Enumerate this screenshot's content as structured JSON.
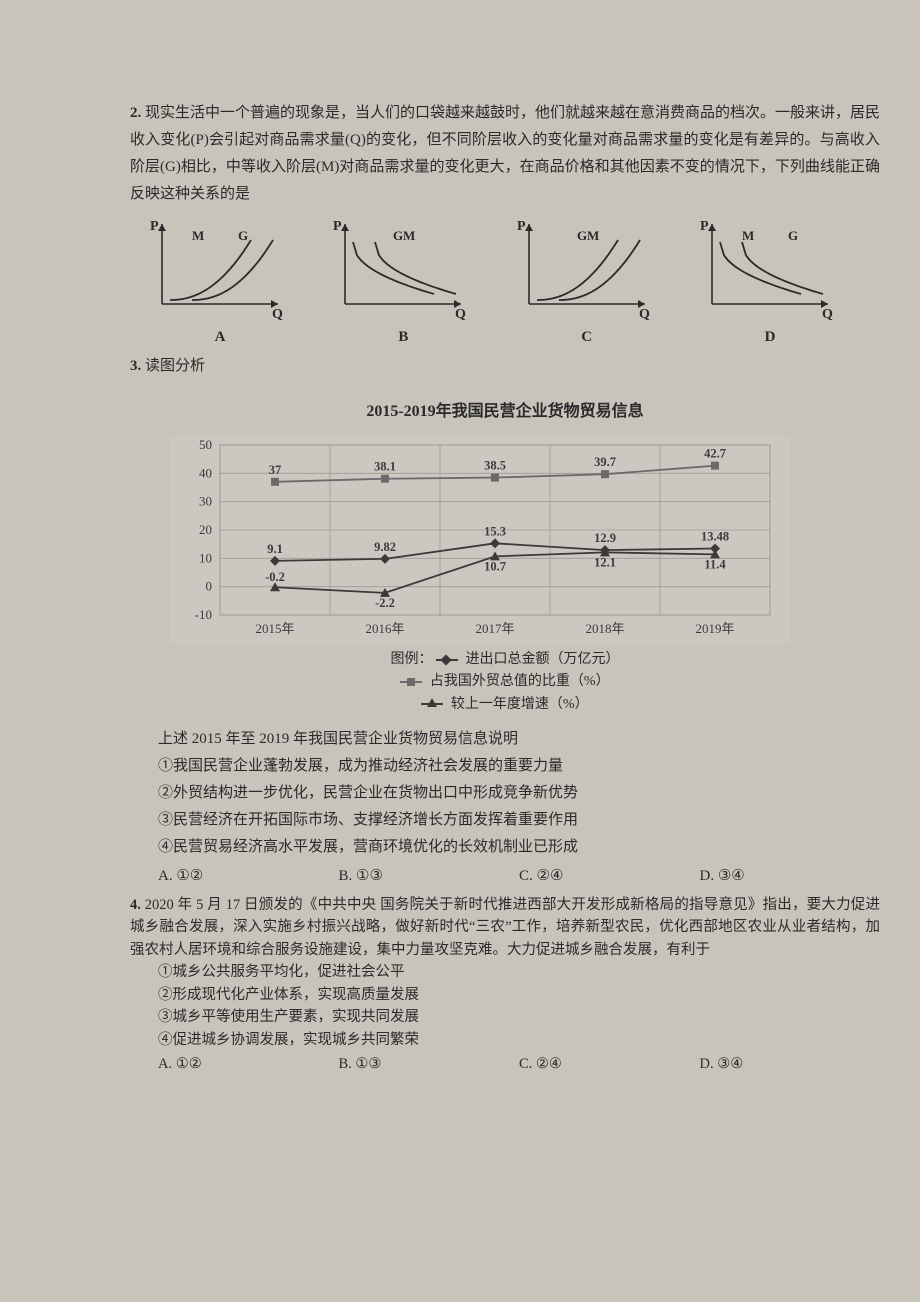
{
  "q2": {
    "number": "2.",
    "text": "现实生活中一个普遍的现象是，当人们的口袋越来越鼓时，他们就越来越在意消费商品的档次。一般来讲，居民收入变化(P)会引起对商品需求量(Q)的变化，但不同阶层收入的变化量对商品需求量的变化是有差异的。与高收入阶层(G)相比，中等收入阶层(M)对商品需求量的变化更大，在商品价格和其他因素不变的情况下，下列曲线能正确反映这种关系的是",
    "graphs": {
      "axis_color": "#2a2a2a",
      "curve_color": "#2a2a2a",
      "bg": "transparent",
      "labelP": "P",
      "labelQ": "Q",
      "labelM": "M",
      "labelG": "G",
      "items": [
        {
          "label": "A",
          "type": "up",
          "m_left": true
        },
        {
          "label": "B",
          "type": "down",
          "m_left": false
        },
        {
          "label": "C",
          "type": "up",
          "m_left": false
        },
        {
          "label": "D",
          "type": "down",
          "m_left": true
        }
      ]
    }
  },
  "q3": {
    "number": "3.",
    "lead": "读图分析",
    "chart": {
      "title": "2015-2019年我国民营企业货物贸易信息",
      "categories": [
        "2015年",
        "2016年",
        "2017年",
        "2018年",
        "2019年"
      ],
      "y_ticks": [
        -10,
        0,
        10,
        20,
        30,
        40,
        50
      ],
      "ylim": [
        -10,
        50
      ],
      "background_color": "#d6d2ca",
      "grid_color": "#9e9a92",
      "axis_color": "#3a3a3a",
      "label_fontsize": 13,
      "series": [
        {
          "key": "amount",
          "name": "进出口总金额（万亿元）",
          "marker": "diamond",
          "line_color": "#3a3a3a",
          "values": [
            9.1,
            9.82,
            15.3,
            12.9,
            13.48
          ],
          "label_dy": [
            -8,
            -8,
            -8,
            -8,
            -8
          ]
        },
        {
          "key": "share",
          "name": "占我国外贸总值的比重（%）",
          "marker": "square",
          "line_color": "#6a6a6a",
          "values": [
            37,
            38.1,
            38.5,
            39.7,
            42.7
          ],
          "label_dy": [
            -8,
            -8,
            -8,
            -8,
            -8
          ]
        },
        {
          "key": "growth",
          "name": "较上一年度增速（%）",
          "marker": "triangle",
          "line_color": "#3a3a3a",
          "values": [
            -0.2,
            -2.2,
            10.7,
            12.1,
            11.4
          ],
          "label_dy": [
            -6,
            14,
            14,
            14,
            14
          ]
        }
      ],
      "legend_prefix": "图例："
    },
    "caption": "上述 2015 年至 2019 年我国民营企业货物贸易信息说明",
    "statements": [
      "①我国民营企业蓬勃发展，成为推动经济社会发展的重要力量",
      "②外贸结构进一步优化，民营企业在货物出口中形成竞争新优势",
      "③民营经济在开拓国际市场、支撑经济增长方面发挥着重要作用",
      "④民营贸易经济高水平发展，营商环境优化的长效机制业已形成"
    ],
    "options": [
      "A. ①②",
      "B. ①③",
      "C. ②④",
      "D. ③④"
    ]
  },
  "q4": {
    "number": "4.",
    "text": "2020 年 5 月 17 日颁发的《中共中央 国务院关于新时代推进西部大开发形成新格局的指导意见》指出，要大力促进城乡融合发展，深入实施乡村振兴战略，做好新时代“三农”工作，培养新型农民，优化西部地区农业从业者结构，加强农村人居环境和综合服务设施建设，集中力量攻坚克难。大力促进城乡融合发展，有利于",
    "statements": [
      "①城乡公共服务平均化，促进社会公平",
      "②形成现代化产业体系，实现高质量发展",
      "③城乡平等使用生产要素，实现共同发展",
      "④促进城乡协调发展，实现城乡共同繁荣"
    ],
    "options": [
      "A. ①②",
      "B. ①③",
      "C. ②④",
      "D. ③④"
    ]
  }
}
